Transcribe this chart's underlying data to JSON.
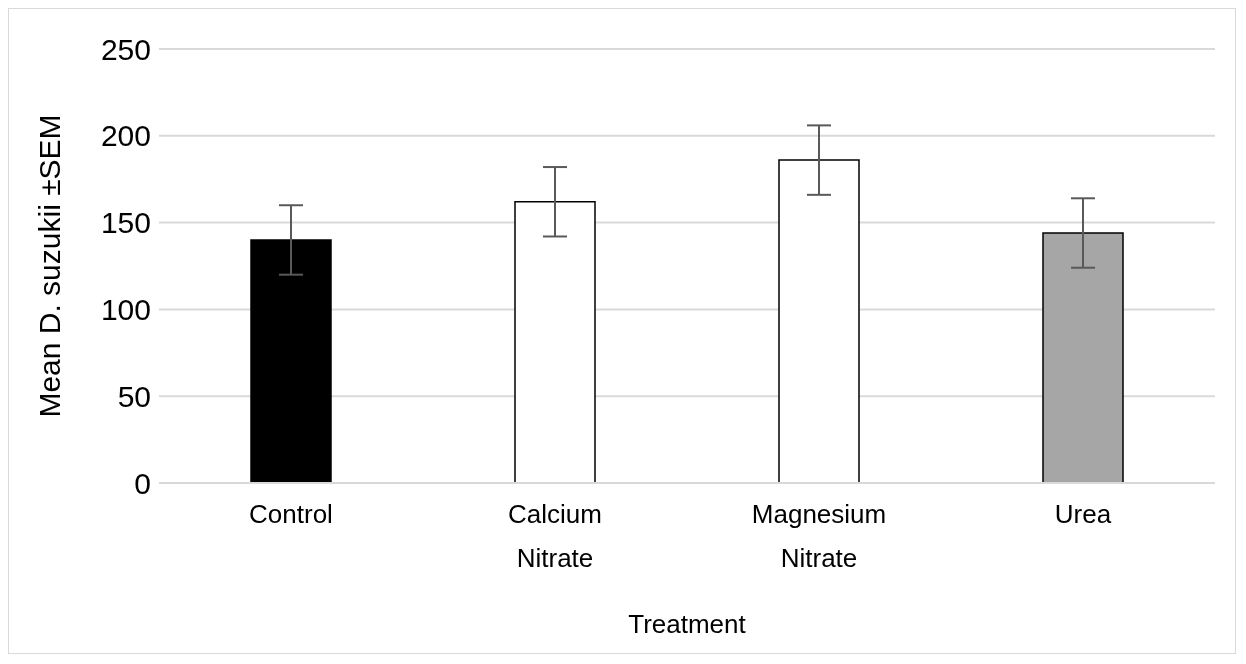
{
  "chart_data": {
    "type": "bar",
    "categories": [
      "Control",
      "Calcium Nitrate",
      "Magnesium Nitrate",
      "Urea"
    ],
    "values": [
      140,
      162,
      186,
      144
    ],
    "errors": [
      20,
      20,
      20,
      20
    ],
    "colors": [
      "#000000",
      "#ffffff",
      "#ffffff",
      "#a6a6a6"
    ],
    "xlabel": "Treatment",
    "ylabel": "Mean D. suzukii ±SEM",
    "ylim": [
      0,
      250
    ],
    "yticks": [
      0,
      50,
      100,
      150,
      200,
      250
    ],
    "grid": "y"
  }
}
